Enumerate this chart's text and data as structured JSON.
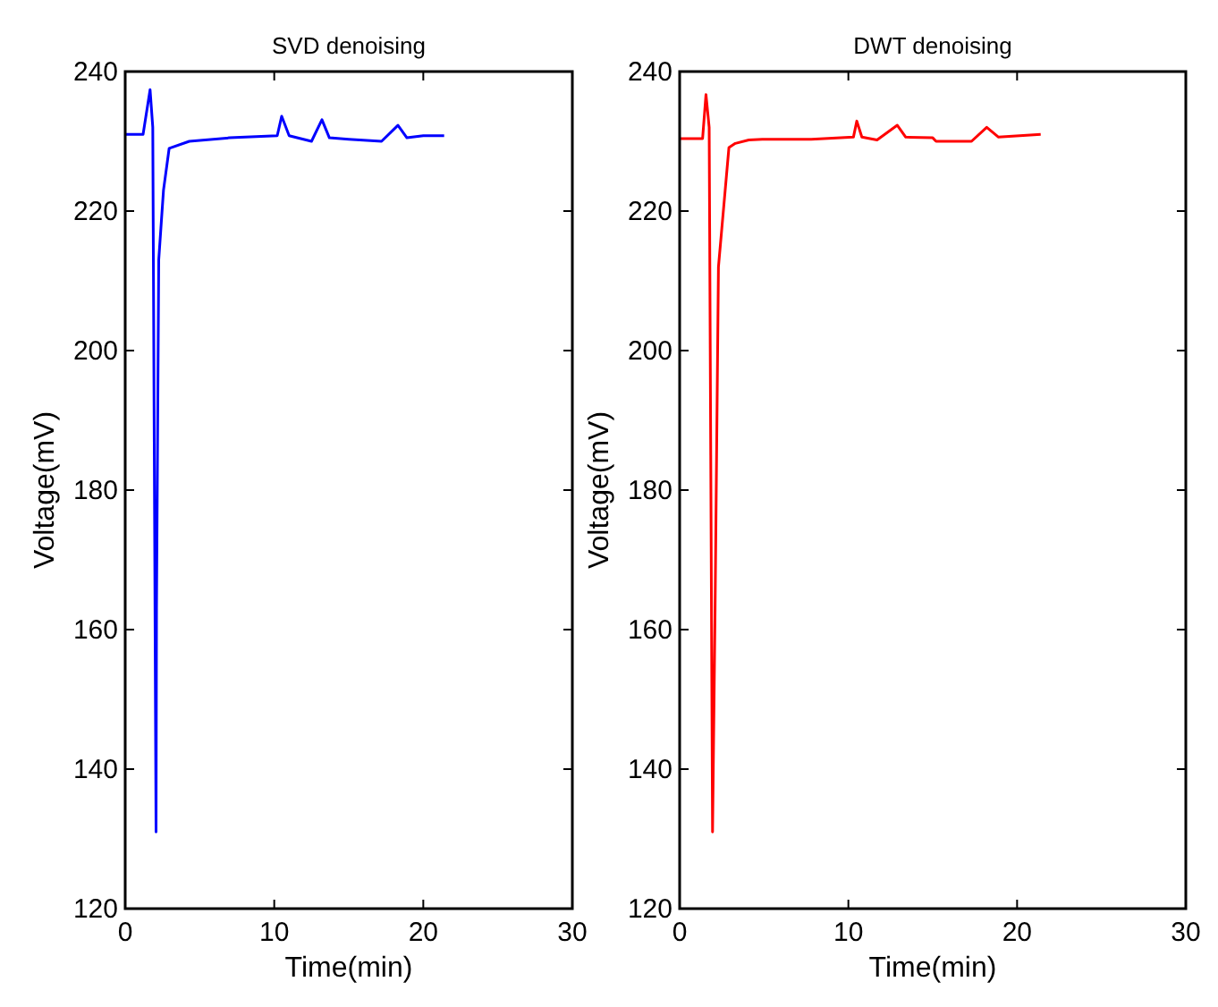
{
  "chart_data": [
    {
      "type": "line",
      "title": "SVD denoising",
      "xlabel": "Time(min)",
      "ylabel": "Voltage(mV)",
      "xlim": [
        0,
        30
      ],
      "ylim": [
        120,
        240
      ],
      "xticks": [
        0,
        10,
        20,
        30
      ],
      "yticks": [
        120,
        140,
        160,
        180,
        200,
        220,
        240
      ],
      "grid": false,
      "series": [
        {
          "color": "#0000ff",
          "x": [
            0,
            1.2,
            1.67,
            1.85,
            2.07,
            2.1,
            2.25,
            2.57,
            2.95,
            4.3,
            7,
            10.2,
            10.5,
            11,
            12.5,
            13.2,
            13.7,
            15,
            17.2,
            18.3,
            18.9,
            20,
            21.4
          ],
          "values": [
            231,
            231,
            237.4,
            232,
            131,
            163,
            213,
            223,
            229,
            230,
            230.5,
            230.8,
            233.6,
            230.8,
            230,
            233.1,
            230.5,
            230.3,
            230,
            232.3,
            230.5,
            230.8,
            230.8
          ]
        }
      ]
    },
    {
      "type": "line",
      "title": "DWT denoising",
      "xlabel": "Time(min)",
      "ylabel": "Voltage(mV)",
      "xlim": [
        0,
        30
      ],
      "ylim": [
        120,
        240
      ],
      "xticks": [
        0,
        10,
        20,
        30
      ],
      "yticks": [
        120,
        140,
        160,
        180,
        200,
        220,
        240
      ],
      "grid": false,
      "series": [
        {
          "color": "#ff0000",
          "x": [
            0,
            1.36,
            1.56,
            1.75,
            1.95,
            2.1,
            2.3,
            2.92,
            3.3,
            4.1,
            4.9,
            7.8,
            10.3,
            10.5,
            10.8,
            11.7,
            12.9,
            13.4,
            15,
            15.2,
            17.3,
            18.2,
            18.9,
            21.4
          ],
          "values": [
            230.4,
            230.4,
            236.7,
            232,
            131,
            163,
            212,
            229.1,
            229.7,
            230.2,
            230.3,
            230.3,
            230.6,
            232.9,
            230.6,
            230.2,
            232.3,
            230.6,
            230.5,
            230,
            230,
            232,
            230.6,
            231
          ]
        }
      ]
    }
  ]
}
